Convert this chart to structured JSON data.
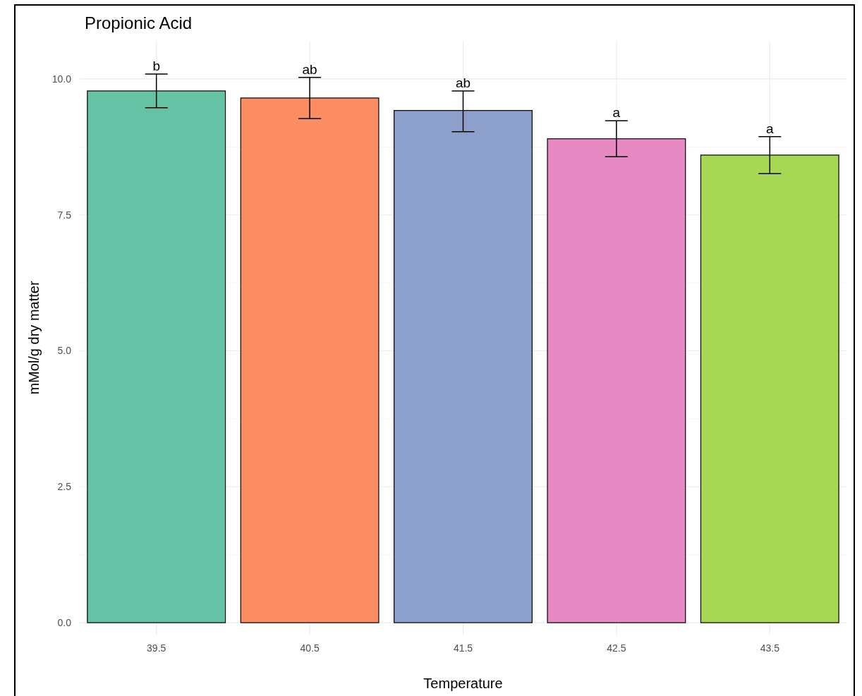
{
  "chart_data": {
    "type": "bar",
    "title": "Propionic Acid",
    "xlabel": "Temperature",
    "ylabel": "mMol/g dry matter",
    "categories": [
      "39.5",
      "40.5",
      "41.5",
      "42.5",
      "43.5"
    ],
    "values": [
      9.78,
      9.65,
      9.42,
      8.9,
      8.6
    ],
    "colors": [
      "#66c2a5",
      "#fc8d62",
      "#8da0cb",
      "#e78ac3",
      "#a6d854"
    ],
    "errors": [
      [
        9.47,
        10.09
      ],
      [
        9.27,
        10.03
      ],
      [
        9.03,
        9.78
      ],
      [
        8.57,
        9.23
      ],
      [
        8.26,
        8.94
      ]
    ],
    "annotations": [
      {
        "text": "b",
        "x": "39.5",
        "y": 10.09
      },
      {
        "text": "ab",
        "x": "40.5",
        "y": 10.03
      },
      {
        "text": "ab",
        "x": "41.5",
        "y": 9.78
      },
      {
        "text": "a",
        "x": "42.5",
        "y": 9.23
      },
      {
        "text": "a",
        "x": "43.5",
        "y": 8.94
      }
    ],
    "ylim": [
      -0.22,
      10.7
    ],
    "yticks": [
      {
        "value": 0,
        "label": "0.0"
      },
      {
        "value": 2.5,
        "label": "2.5"
      },
      {
        "value": 5,
        "label": "5.0"
      },
      {
        "value": 7.5,
        "label": "7.5"
      },
      {
        "value": 10,
        "label": "10.0"
      }
    ],
    "grid": true
  }
}
